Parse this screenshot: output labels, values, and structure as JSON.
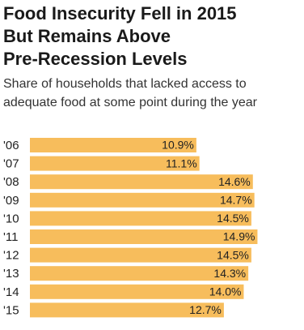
{
  "chart_data": {
    "type": "bar",
    "orientation": "horizontal",
    "title": [
      "Food Insecurity Fell in 2015",
      "But Remains Above",
      "Pre-Recession Levels"
    ],
    "subtitle": [
      "Share of households that lacked access to",
      "adequate food at some point during the year"
    ],
    "categories": [
      "'06",
      "'07",
      "'08",
      "'09",
      "'10",
      "'11",
      "'12",
      "'13",
      "'14",
      "'15"
    ],
    "values": [
      10.9,
      11.1,
      14.6,
      14.7,
      14.5,
      14.9,
      14.5,
      14.3,
      14.0,
      12.7
    ],
    "value_labels": [
      "10.9%",
      "11.1%",
      "14.6%",
      "14.7%",
      "14.5%",
      "14.9%",
      "14.5%",
      "14.3%",
      "14.0%",
      "12.7%"
    ],
    "color": "#f7bd5c",
    "xlim": [
      0,
      18
    ]
  }
}
